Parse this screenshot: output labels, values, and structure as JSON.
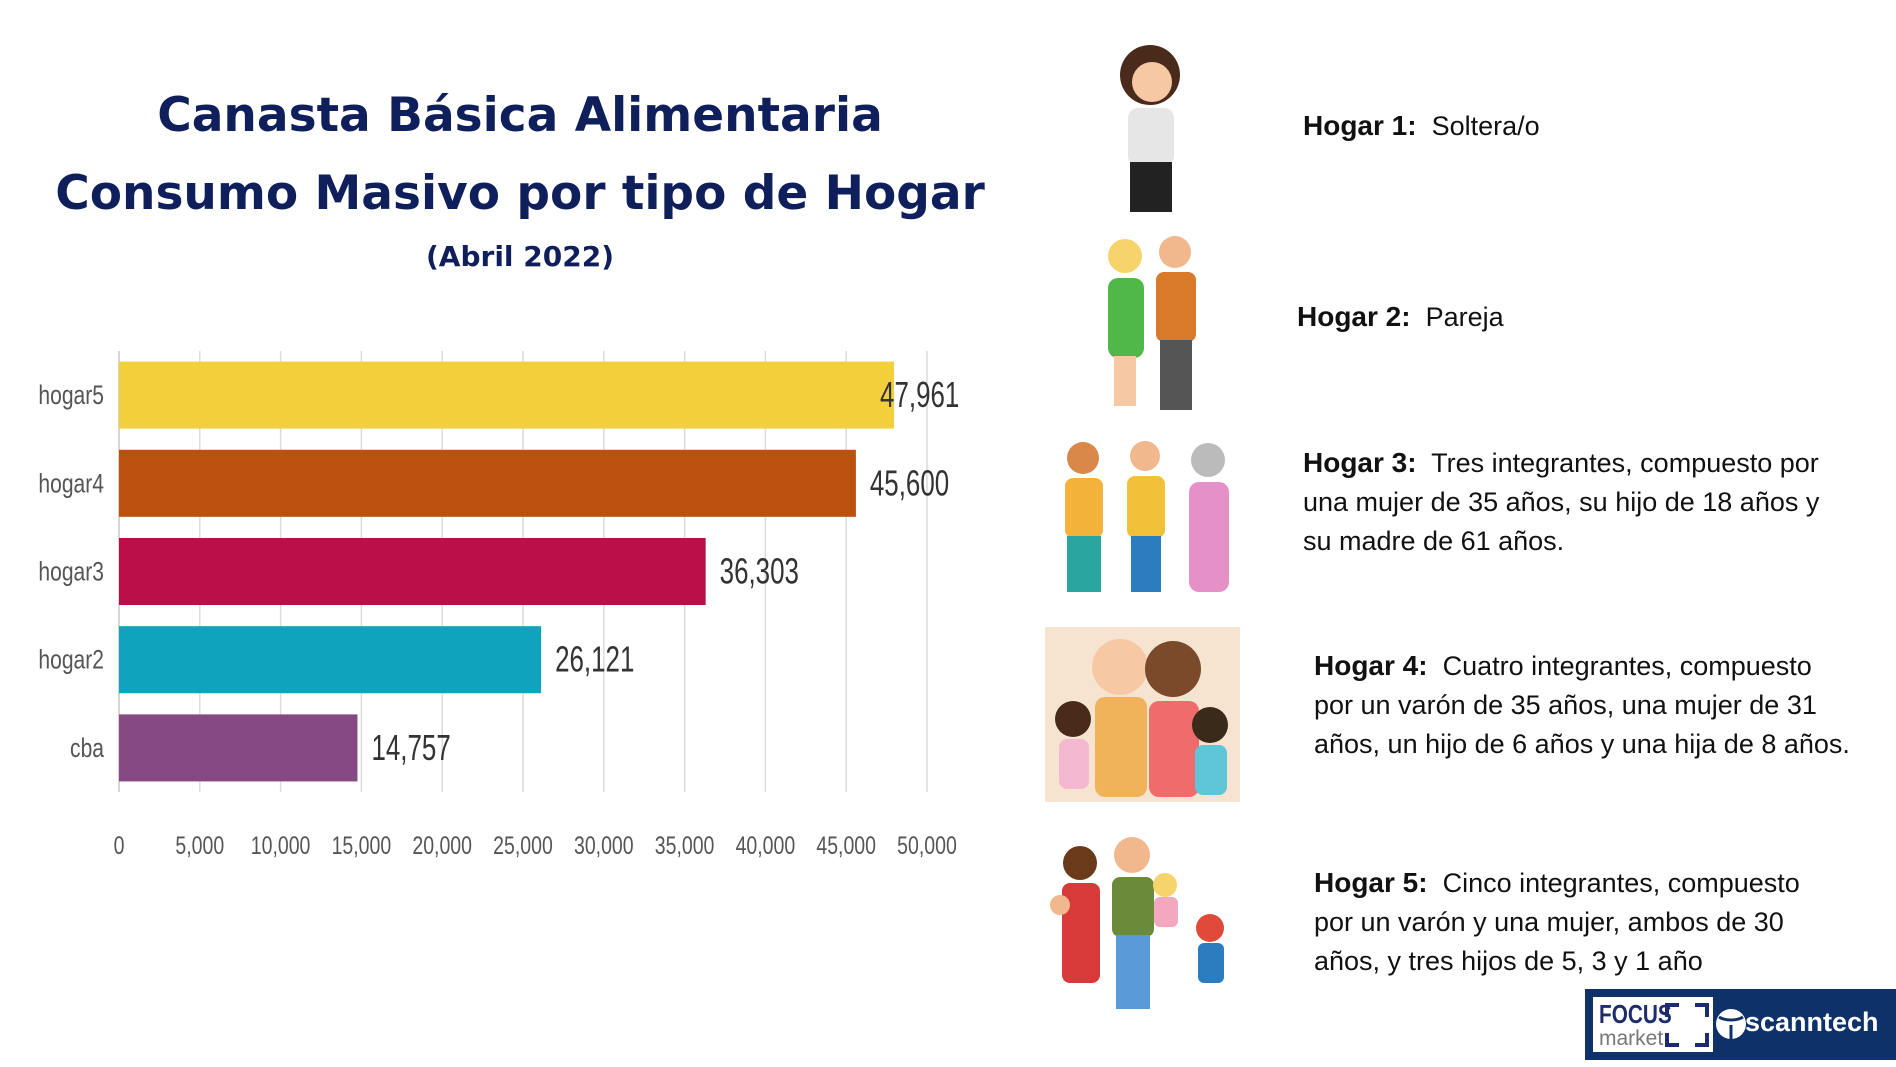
{
  "title": {
    "line1": "Canasta Básica Alimentaria",
    "line2": "Consumo Masivo por tipo de Hogar",
    "subtitle": "(Abril 2022)"
  },
  "chart_data": {
    "type": "bar",
    "orientation": "horizontal",
    "categories": [
      "hogar5",
      "hogar4",
      "hogar3",
      "hogar2",
      "cba"
    ],
    "values": [
      47961,
      45600,
      36303,
      26121,
      14757
    ],
    "data_labels": [
      "47,961",
      "45,600",
      "36,303",
      "26,121",
      "14,757"
    ],
    "colors": [
      "#f2cf3b",
      "#bb510f",
      "#bb0f4a",
      "#0fa3bd",
      "#874984"
    ],
    "xlim": [
      0,
      50000
    ],
    "xticks": [
      "0",
      "5,000",
      "10,000",
      "15,000",
      "20,000",
      "25,000",
      "30,000",
      "35,000",
      "40,000",
      "45,000",
      "50,000"
    ],
    "grid": true,
    "legend": "none"
  },
  "households": [
    {
      "label": "Hogar 1:",
      "lines": [
        "Soltera/o"
      ]
    },
    {
      "label": "Hogar 2:",
      "lines": [
        "Pareja"
      ]
    },
    {
      "label": "Hogar 3:",
      "lines": [
        "Tres integrantes, compuesto por",
        "una mujer de 35 años, su hijo de 18 años y",
        "su madre de 61 años."
      ]
    },
    {
      "label": "Hogar 4:",
      "lines": [
        "Cuatro integrantes, compuesto",
        "por un varón de 35 años, una mujer de 31",
        "años, un hijo de 6 años y una hija de 8 años."
      ]
    },
    {
      "label": "Hogar 5:",
      "lines": [
        "Cinco integrantes, compuesto",
        "por un varón y una mujer, ambos de 30",
        "años, y tres hijos de 5, 3 y 1 año"
      ]
    }
  ],
  "logos": {
    "focus_line1": "FOCUS",
    "focus_line2": "market",
    "scanntech": "scanntech"
  }
}
